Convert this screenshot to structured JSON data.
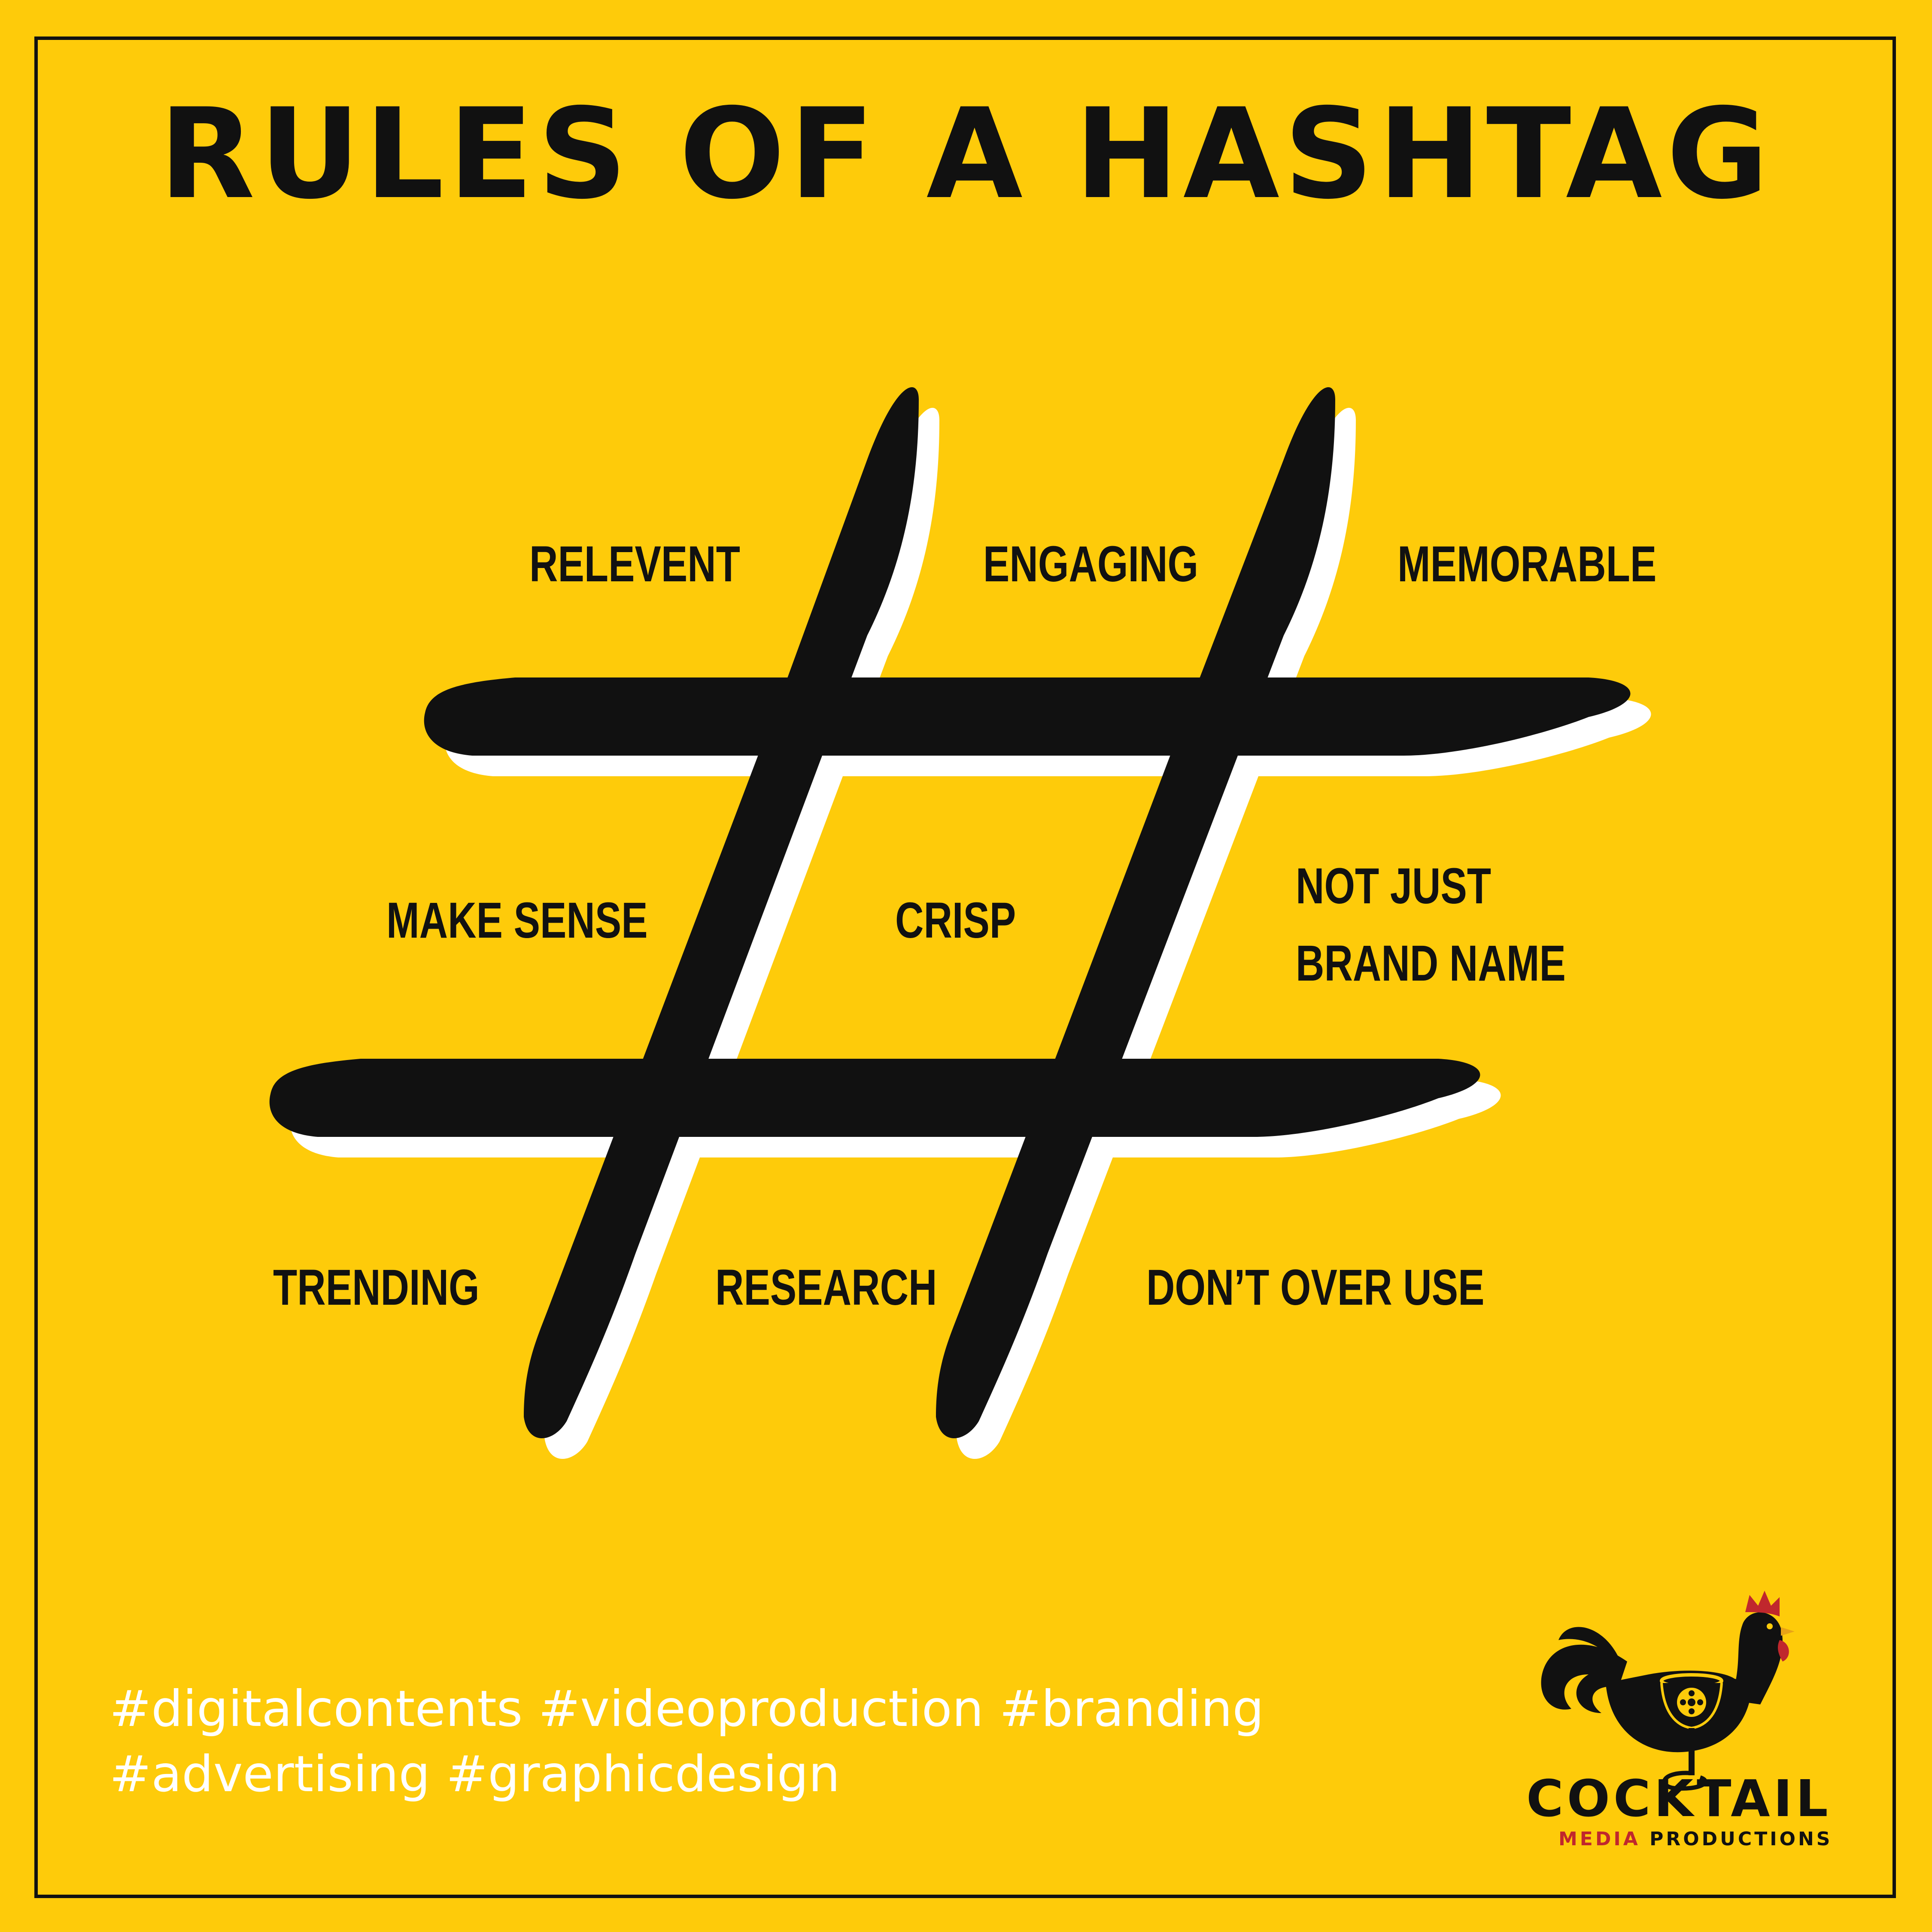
{
  "title": "RULES OF A HASHTAG",
  "rules": [
    {
      "text": "RELEVENT"
    },
    {
      "text": "ENGAGING"
    },
    {
      "text": "MEMORABLE"
    },
    {
      "text": "MAKE SENSE"
    },
    {
      "text": "CRISP"
    },
    {
      "line1": "NOT JUST",
      "line2": "BRAND NAME"
    },
    {
      "text": "TRENDING"
    },
    {
      "text": "RESEARCH"
    },
    {
      "text": "DON’T OVER USE"
    }
  ],
  "hashtags": {
    "line1": "#digitalcontents #videoproduction #branding",
    "line2": "#advertising #graphicdesign"
  },
  "logo": {
    "name": "COCKTAIL",
    "sub_accent": "MEDIA",
    "sub_rest": " PRODUCTIONS",
    "icon": "rooster-cocktail-glass-icon"
  },
  "colors": {
    "background": "#FECB0A",
    "ink": "#111111",
    "shadow": "#FFFFFF",
    "accent": "#C0272D"
  }
}
